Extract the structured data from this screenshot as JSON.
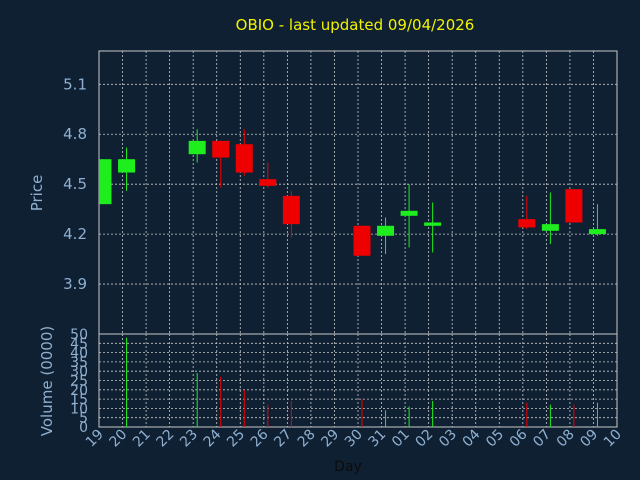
{
  "chart_data": {
    "type": "candlestick",
    "title": "OBIO - last updated 09/04/2026",
    "price_label": "Price",
    "volume_label": "Volume (0000)",
    "xlabel": "Day",
    "price_ticks": [
      "3.9",
      "4.2",
      "4.5",
      "4.8",
      "5.1"
    ],
    "price_ylim": [
      3.6,
      5.3
    ],
    "volume_ticks": [
      "0",
      "5",
      "10",
      "15",
      "20",
      "25",
      "30",
      "35",
      "40",
      "45",
      "50"
    ],
    "volume_ylim": [
      0,
      50
    ],
    "x_ticks": [
      "19",
      "20",
      "21",
      "22",
      "23",
      "24",
      "25",
      "26",
      "27",
      "28",
      "29",
      "30",
      "31",
      "01",
      "02",
      "03",
      "04",
      "05",
      "06",
      "07",
      "08",
      "09",
      "10"
    ],
    "candles": [
      {
        "day": "19",
        "open": 4.38,
        "close": 4.65,
        "high": 4.65,
        "low": 4.38,
        "volume": 0
      },
      {
        "day": "20",
        "open": 4.57,
        "close": 4.65,
        "high": 4.72,
        "low": 4.46,
        "volume": 48
      },
      {
        "day": "23",
        "open": 4.68,
        "close": 4.76,
        "high": 4.83,
        "low": 4.63,
        "volume": 29
      },
      {
        "day": "24",
        "open": 4.76,
        "close": 4.66,
        "high": 4.76,
        "low": 4.48,
        "volume": 27
      },
      {
        "day": "25",
        "open": 4.74,
        "close": 4.57,
        "high": 4.83,
        "low": 4.55,
        "volume": 20
      },
      {
        "day": "26",
        "open": 4.53,
        "close": 4.49,
        "high": 4.63,
        "low": 4.48,
        "volume": 12
      },
      {
        "day": "27",
        "open": 4.43,
        "close": 4.26,
        "high": 4.46,
        "low": 4.18,
        "volume": 14
      },
      {
        "day": "30",
        "open": 4.25,
        "close": 4.07,
        "high": 4.25,
        "low": 4.07,
        "volume": 15
      },
      {
        "day": "31",
        "open": 4.19,
        "close": 4.25,
        "high": 4.3,
        "low": 4.08,
        "volume": 9
      },
      {
        "day": "01",
        "open": 4.31,
        "close": 4.34,
        "high": 4.5,
        "low": 4.12,
        "volume": 11
      },
      {
        "day": "02",
        "open": 4.25,
        "close": 4.27,
        "high": 4.39,
        "low": 4.09,
        "volume": 14
      },
      {
        "day": "06",
        "open": 4.29,
        "close": 4.24,
        "high": 4.43,
        "low": 4.23,
        "volume": 13
      },
      {
        "day": "07",
        "open": 4.22,
        "close": 4.26,
        "high": 4.45,
        "low": 4.14,
        "volume": 12
      },
      {
        "day": "08",
        "open": 4.47,
        "close": 4.27,
        "high": 4.47,
        "low": 4.27,
        "volume": 12
      },
      {
        "day": "09",
        "open": 4.2,
        "close": 4.23,
        "high": 4.38,
        "low": 4.19,
        "volume": 13
      }
    ],
    "colors": {
      "background": "#0f2033",
      "up": "#1eed1e",
      "down": "#ee0000",
      "grid": "#c8c8c8",
      "text": "#8fb0d0",
      "title": "#f3f300"
    }
  }
}
